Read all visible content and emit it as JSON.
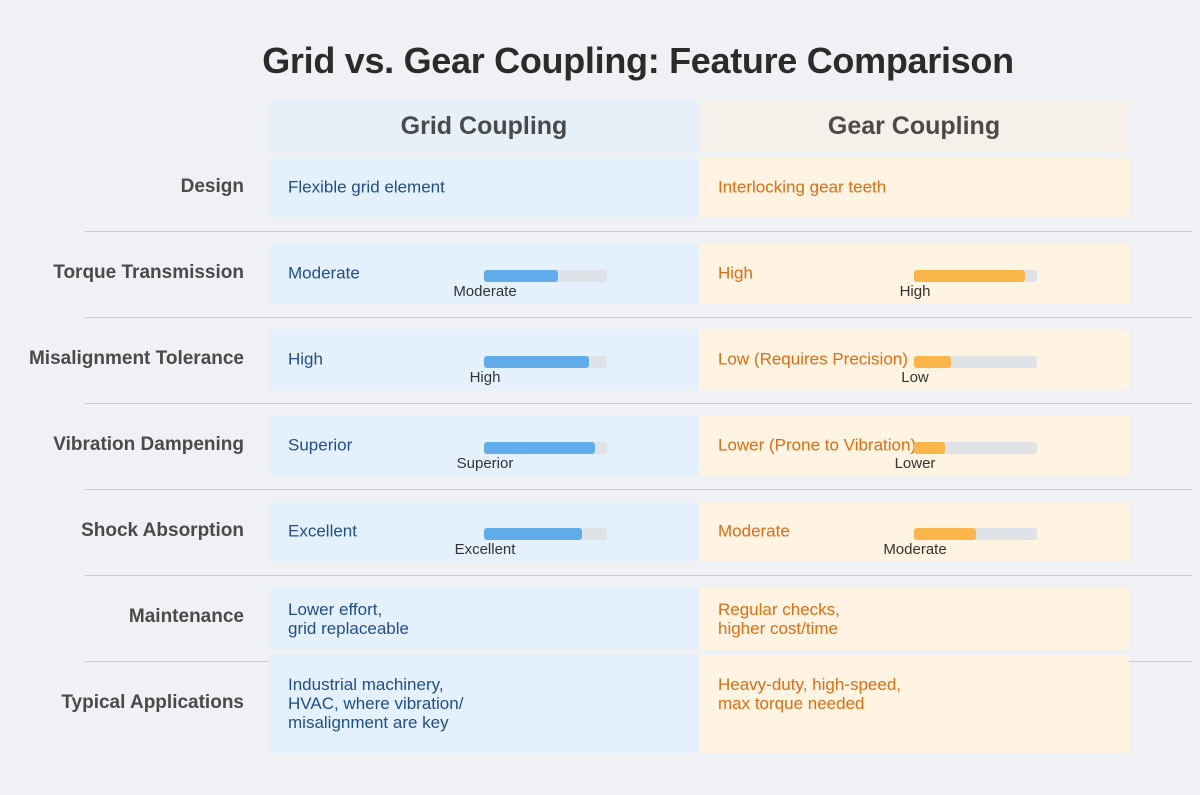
{
  "title": "Grid vs. Gear Coupling: Feature Comparison",
  "columns": {
    "grid": "Grid Coupling",
    "gear": "Gear Coupling"
  },
  "colors": {
    "grid_text": "#1f4e8c",
    "grid_bg": "#e4f1fd",
    "grid_bar": "#61adec",
    "gear_text": "#e06d10",
    "gear_bg": "#fff3e1",
    "gear_bar": "#fbb64a",
    "bar_track": "#dfe2e6"
  },
  "rows": [
    {
      "label": "Design",
      "grid": {
        "text": "Flexible grid element"
      },
      "gear": {
        "text": "Interlocking gear teeth"
      }
    },
    {
      "label": "Torque Transmission",
      "grid": {
        "text": "Moderate",
        "level": 0.6,
        "caption": "Moderate"
      },
      "gear": {
        "text": "High",
        "level": 0.9,
        "caption": "High"
      }
    },
    {
      "label": "Misalignment Tolerance",
      "grid": {
        "text": "High",
        "level": 0.85,
        "caption": "High"
      },
      "gear": {
        "text": "Low (Requires Precision)",
        "level": 0.3,
        "caption": "Low"
      }
    },
    {
      "label": "Vibration Dampening",
      "grid": {
        "text": "Superior",
        "level": 0.9,
        "caption": "Superior"
      },
      "gear": {
        "text": "Lower (Prone to Vibration)",
        "level": 0.25,
        "caption": "Lower"
      }
    },
    {
      "label": "Shock Absorption",
      "grid": {
        "text": "Excellent",
        "level": 0.8,
        "caption": "Excellent"
      },
      "gear": {
        "text": "Moderate",
        "level": 0.5,
        "caption": "Moderate"
      }
    },
    {
      "label": "Maintenance",
      "grid": {
        "text": "Lower effort,\ngrid replaceable"
      },
      "gear": {
        "text": "Regular checks,\nhigher cost/time"
      }
    },
    {
      "label": "Typical Applications",
      "grid": {
        "text": "Industrial machinery,\nHVAC, where vibration/\nmisalignment are key"
      },
      "gear": {
        "text": "Heavy-duty, high-speed,\nmax torque needed"
      }
    }
  ]
}
